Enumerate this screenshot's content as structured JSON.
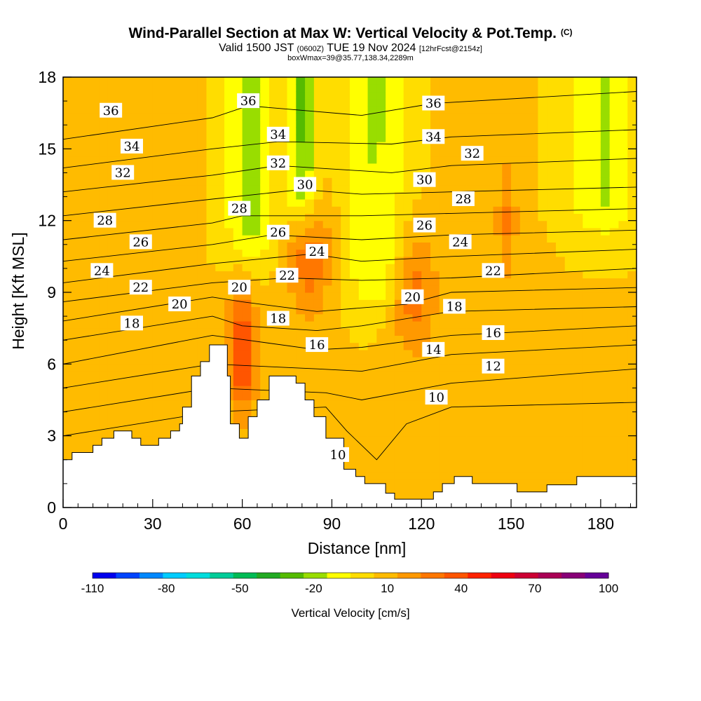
{
  "title": {
    "main": "Wind-Parallel Section at Max W: Vertical Velocity & Pot.Temp.",
    "copyright": "(C)",
    "valid_prefix": "Valid 1500 JST",
    "utc": "(0600Z)",
    "valid_date": "TUE 19 Nov 2024",
    "forecast": "[12hrFcst@2154z]",
    "box": "boxWmax=39@35.77,138.34,2289m"
  },
  "chart_data": {
    "type": "heatmap",
    "xlabel": "Distance [nm]",
    "ylabel": "Height [Kft MSL]",
    "xlim": [
      0,
      192
    ],
    "ylim": [
      0,
      18
    ],
    "xticks": [
      0,
      30,
      60,
      90,
      120,
      150,
      180
    ],
    "yticks": [
      0,
      3,
      6,
      9,
      12,
      15,
      18
    ],
    "colorbar": {
      "label": "Vertical Velocity [cm/s]",
      "tick_labels": [
        -110,
        -80,
        -50,
        -20,
        10,
        40,
        70,
        100
      ],
      "colors": [
        "#0000ee",
        "#0044ff",
        "#0088ff",
        "#00ccff",
        "#00dddd",
        "#00cc99",
        "#00bb55",
        "#22aa22",
        "#55bb00",
        "#99dd00",
        "#ffff00",
        "#ffdd00",
        "#ffbb00",
        "#ff9900",
        "#ff7700",
        "#ff5500",
        "#ff2200",
        "#ee0011",
        "#cc0033",
        "#aa0055",
        "#880077",
        "#660099"
      ]
    },
    "terrain_kft": [
      [
        0,
        2
      ],
      [
        3,
        2
      ],
      [
        3,
        2.3
      ],
      [
        10,
        2.3
      ],
      [
        10,
        2.6
      ],
      [
        13,
        2.6
      ],
      [
        13,
        2.9
      ],
      [
        17,
        2.9
      ],
      [
        17,
        3.2
      ],
      [
        23,
        3.2
      ],
      [
        23,
        2.9
      ],
      [
        26,
        2.9
      ],
      [
        26,
        2.6
      ],
      [
        32,
        2.6
      ],
      [
        32,
        2.9
      ],
      [
        36,
        2.9
      ],
      [
        36,
        3.2
      ],
      [
        39,
        3.2
      ],
      [
        39,
        3.5
      ],
      [
        40,
        3.5
      ],
      [
        40,
        4.2
      ],
      [
        43,
        4.2
      ],
      [
        43,
        5.5
      ],
      [
        46,
        5.5
      ],
      [
        46,
        6.1
      ],
      [
        49,
        6.1
      ],
      [
        49,
        6.8
      ],
      [
        55,
        6.8
      ],
      [
        55,
        5.5
      ],
      [
        56,
        5.5
      ],
      [
        56,
        3.5
      ],
      [
        59,
        3.5
      ],
      [
        59,
        2.9
      ],
      [
        62,
        2.9
      ],
      [
        62,
        3.8
      ],
      [
        65,
        3.8
      ],
      [
        65,
        4.5
      ],
      [
        69,
        4.5
      ],
      [
        69,
        5.5
      ],
      [
        78,
        5.5
      ],
      [
        78,
        5.2
      ],
      [
        81,
        5.2
      ],
      [
        81,
        4.5
      ],
      [
        84,
        4.5
      ],
      [
        84,
        3.8
      ],
      [
        88,
        3.8
      ],
      [
        88,
        2.9
      ],
      [
        94,
        2.9
      ],
      [
        94,
        1.6
      ],
      [
        98,
        1.6
      ],
      [
        98,
        1.3
      ],
      [
        101,
        1.3
      ],
      [
        101,
        1.0
      ],
      [
        108,
        1.0
      ],
      [
        108,
        0.6
      ],
      [
        111,
        0.6
      ],
      [
        111,
        0.35
      ],
      [
        124,
        0.35
      ],
      [
        124,
        0.65
      ],
      [
        127,
        0.65
      ],
      [
        127,
        1.0
      ],
      [
        131,
        1.0
      ],
      [
        131,
        1.3
      ],
      [
        137,
        1.3
      ],
      [
        137,
        1.0
      ],
      [
        152,
        1.0
      ],
      [
        152,
        0.65
      ],
      [
        162,
        0.65
      ],
      [
        162,
        0.95
      ],
      [
        172,
        0.95
      ],
      [
        172,
        1.3
      ],
      [
        192,
        1.3
      ]
    ],
    "contours": [
      {
        "value": 10,
        "y": [
          {
            "x": 0,
            "y": 3.0
          },
          {
            "x": 50,
            "y": 4.0
          },
          {
            "x": 88,
            "y": 4.2
          },
          {
            "x": 95,
            "y": 3.2
          },
          {
            "x": 105,
            "y": 2.0
          },
          {
            "x": 115,
            "y": 3.5
          },
          {
            "x": 130,
            "y": 4.2
          },
          {
            "x": 192,
            "y": 4.4
          }
        ],
        "labels": [
          {
            "x": 92,
            "y": 2.2
          },
          {
            "x": 125,
            "y": 4.6
          }
        ]
      },
      {
        "value": 12,
        "y": [
          {
            "x": 0,
            "y": 4.0
          },
          {
            "x": 50,
            "y": 5.0
          },
          {
            "x": 88,
            "y": 4.8
          },
          {
            "x": 100,
            "y": 4.5
          },
          {
            "x": 130,
            "y": 5.2
          },
          {
            "x": 192,
            "y": 5.8
          }
        ],
        "labels": [
          {
            "x": 144,
            "y": 5.9
          }
        ]
      },
      {
        "value": 14,
        "y": [
          {
            "x": 0,
            "y": 5.0
          },
          {
            "x": 50,
            "y": 6.0
          },
          {
            "x": 85,
            "y": 5.8
          },
          {
            "x": 100,
            "y": 5.7
          },
          {
            "x": 130,
            "y": 6.4
          },
          {
            "x": 192,
            "y": 6.8
          }
        ],
        "labels": [
          {
            "x": 124,
            "y": 6.6
          }
        ]
      },
      {
        "value": 16,
        "y": [
          {
            "x": 0,
            "y": 6.0
          },
          {
            "x": 50,
            "y": 7.2
          },
          {
            "x": 85,
            "y": 6.6
          },
          {
            "x": 100,
            "y": 6.7
          },
          {
            "x": 130,
            "y": 7.2
          },
          {
            "x": 192,
            "y": 7.6
          }
        ],
        "labels": [
          {
            "x": 85,
            "y": 6.8
          },
          {
            "x": 144,
            "y": 7.3
          }
        ]
      },
      {
        "value": 18,
        "y": [
          {
            "x": 0,
            "y": 7.0
          },
          {
            "x": 50,
            "y": 8.0
          },
          {
            "x": 60,
            "y": 7.6
          },
          {
            "x": 85,
            "y": 7.4
          },
          {
            "x": 100,
            "y": 7.6
          },
          {
            "x": 130,
            "y": 8.2
          },
          {
            "x": 192,
            "y": 8.4
          }
        ],
        "labels": [
          {
            "x": 23,
            "y": 7.7
          },
          {
            "x": 72,
            "y": 7.9
          },
          {
            "x": 131,
            "y": 8.4
          }
        ]
      },
      {
        "value": 20,
        "y": [
          {
            "x": 0,
            "y": 7.8
          },
          {
            "x": 50,
            "y": 8.8
          },
          {
            "x": 60,
            "y": 8.6
          },
          {
            "x": 85,
            "y": 8.2
          },
          {
            "x": 115,
            "y": 8.5
          },
          {
            "x": 130,
            "y": 9.0
          },
          {
            "x": 192,
            "y": 9.2
          }
        ],
        "labels": [
          {
            "x": 39,
            "y": 8.5
          },
          {
            "x": 59,
            "y": 9.2
          },
          {
            "x": 117,
            "y": 8.8
          }
        ]
      },
      {
        "value": 22,
        "y": [
          {
            "x": 0,
            "y": 8.6
          },
          {
            "x": 50,
            "y": 9.4
          },
          {
            "x": 75,
            "y": 9.6
          },
          {
            "x": 100,
            "y": 9.5
          },
          {
            "x": 130,
            "y": 9.6
          },
          {
            "x": 192,
            "y": 10.0
          }
        ],
        "labels": [
          {
            "x": 26,
            "y": 9.2
          },
          {
            "x": 75,
            "y": 9.7
          },
          {
            "x": 144,
            "y": 9.9
          }
        ]
      },
      {
        "value": 24,
        "y": [
          {
            "x": 0,
            "y": 9.4
          },
          {
            "x": 50,
            "y": 10.2
          },
          {
            "x": 83,
            "y": 10.6
          },
          {
            "x": 100,
            "y": 10.3
          },
          {
            "x": 130,
            "y": 10.5
          },
          {
            "x": 192,
            "y": 10.8
          }
        ],
        "labels": [
          {
            "x": 13,
            "y": 9.9
          },
          {
            "x": 85,
            "y": 10.7
          },
          {
            "x": 133,
            "y": 11.1
          }
        ]
      },
      {
        "value": 26,
        "y": [
          {
            "x": 0,
            "y": 10.3
          },
          {
            "x": 50,
            "y": 11.0
          },
          {
            "x": 70,
            "y": 11.4
          },
          {
            "x": 100,
            "y": 11.2
          },
          {
            "x": 130,
            "y": 11.4
          },
          {
            "x": 192,
            "y": 11.6
          }
        ],
        "labels": [
          {
            "x": 26,
            "y": 11.1
          },
          {
            "x": 72,
            "y": 11.5
          },
          {
            "x": 121,
            "y": 11.8
          }
        ]
      },
      {
        "value": 28,
        "y": [
          {
            "x": 0,
            "y": 11.2
          },
          {
            "x": 50,
            "y": 11.9
          },
          {
            "x": 60,
            "y": 12.2
          },
          {
            "x": 100,
            "y": 12.2
          },
          {
            "x": 130,
            "y": 12.3
          },
          {
            "x": 192,
            "y": 12.5
          }
        ],
        "labels": [
          {
            "x": 14,
            "y": 12.0
          },
          {
            "x": 59,
            "y": 12.5
          },
          {
            "x": 134,
            "y": 12.9
          }
        ]
      },
      {
        "value": 30,
        "y": [
          {
            "x": 0,
            "y": 12.2
          },
          {
            "x": 50,
            "y": 12.9
          },
          {
            "x": 80,
            "y": 13.3
          },
          {
            "x": 100,
            "y": 13.1
          },
          {
            "x": 130,
            "y": 13.2
          },
          {
            "x": 192,
            "y": 13.4
          }
        ],
        "labels": [
          {
            "x": 81,
            "y": 13.5
          },
          {
            "x": 121,
            "y": 13.7
          }
        ]
      },
      {
        "value": 32,
        "y": [
          {
            "x": 0,
            "y": 13.2
          },
          {
            "x": 50,
            "y": 13.9
          },
          {
            "x": 72,
            "y": 14.3
          },
          {
            "x": 110,
            "y": 14.0
          },
          {
            "x": 130,
            "y": 14.3
          },
          {
            "x": 192,
            "y": 14.6
          }
        ],
        "labels": [
          {
            "x": 20,
            "y": 14.0
          },
          {
            "x": 72,
            "y": 14.4
          },
          {
            "x": 137,
            "y": 14.8
          }
        ]
      },
      {
        "value": 34,
        "y": [
          {
            "x": 0,
            "y": 14.2
          },
          {
            "x": 50,
            "y": 15.0
          },
          {
            "x": 72,
            "y": 15.3
          },
          {
            "x": 110,
            "y": 15.2
          },
          {
            "x": 130,
            "y": 15.5
          },
          {
            "x": 192,
            "y": 15.8
          }
        ],
        "labels": [
          {
            "x": 23,
            "y": 15.1
          },
          {
            "x": 72,
            "y": 15.6
          },
          {
            "x": 124,
            "y": 15.5
          }
        ]
      },
      {
        "value": 36,
        "y": [
          {
            "x": 0,
            "y": 15.4
          },
          {
            "x": 50,
            "y": 16.3
          },
          {
            "x": 62,
            "y": 16.8
          },
          {
            "x": 100,
            "y": 16.4
          },
          {
            "x": 124,
            "y": 16.9
          },
          {
            "x": 192,
            "y": 17.4
          }
        ],
        "labels": [
          {
            "x": 16,
            "y": 16.6
          },
          {
            "x": 62,
            "y": 17.0
          },
          {
            "x": 124,
            "y": 16.9
          }
        ]
      }
    ],
    "features": [
      {
        "type": "updraft",
        "x_range": [
          55,
          65
        ],
        "peak_kft": 6.5,
        "velocity": 40
      },
      {
        "type": "updraft",
        "x_range": [
          75,
          90
        ],
        "peak_kft": 10.5,
        "velocity": 25
      },
      {
        "type": "updraft",
        "x_range": [
          110,
          125
        ],
        "peak_kft": 9.0,
        "velocity": 25
      },
      {
        "type": "updraft",
        "x_range": [
          145,
          152
        ],
        "peak_kft": 12.0,
        "velocity": 20
      },
      {
        "type": "downdraft",
        "x_range": [
          55,
          70
        ],
        "top_kft": 18,
        "bottom_kft": 12,
        "velocity": -25
      },
      {
        "type": "downdraft",
        "x_range": [
          75,
          85
        ],
        "top_kft": 18,
        "bottom_kft": 13.5,
        "velocity": -30
      },
      {
        "type": "downdraft",
        "x_range": [
          95,
          115
        ],
        "top_kft": 18,
        "bottom_kft": 10,
        "velocity": -20
      },
      {
        "type": "downdraft",
        "x_range": [
          170,
          192
        ],
        "top_kft": 18,
        "bottom_kft": 13,
        "velocity": -20
      }
    ]
  }
}
